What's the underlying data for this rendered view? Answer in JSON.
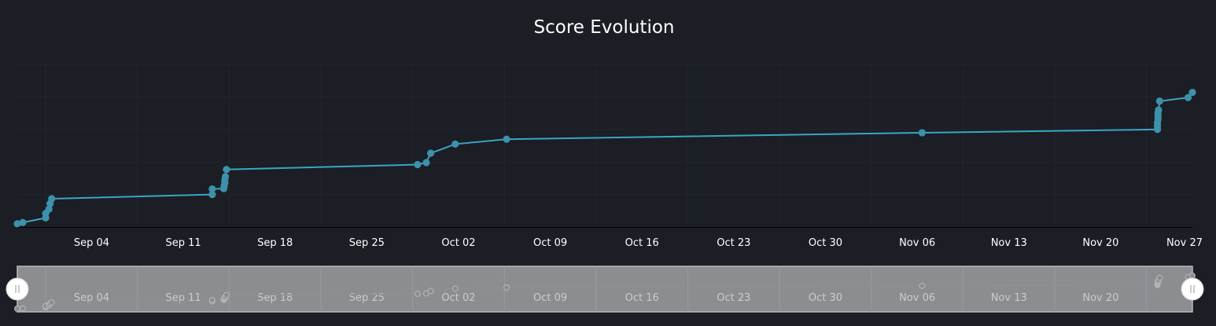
{
  "chart_data": {
    "type": "line",
    "title": "Score Evolution",
    "xlabel": "",
    "ylabel": "",
    "x_tick_labels": [
      "Sep 04",
      "Sep 11",
      "Sep 18",
      "Sep 25",
      "Oct 02",
      "Oct 09",
      "Oct 16",
      "Oct 23",
      "Oct 30",
      "Nov 06",
      "Nov 13",
      "Nov 20",
      "Nov 27"
    ],
    "x_ticks": [
      "2023-09-04",
      "2023-09-11",
      "2023-09-18",
      "2023-09-25",
      "2023-10-02",
      "2023-10-09",
      "2023-10-16",
      "2023-10-23",
      "2023-10-30",
      "2023-11-06",
      "2023-11-13",
      "2023-11-20",
      "2023-11-27"
    ],
    "xlim": [
      "2023-08-29T08:00",
      "2023-11-27"
    ],
    "ylim": [
      0,
      5
    ],
    "y_tick_labels_visible": false,
    "grid": true,
    "legend": "none",
    "series": [
      {
        "color": "#3aa5c4",
        "points": [
          [
            "2023-08-29T08:00",
            0.1
          ],
          [
            "2023-08-29T18:00",
            0.14
          ],
          [
            "2023-08-31T12:00",
            0.28
          ],
          [
            "2023-08-31T12:00",
            0.42
          ],
          [
            "2023-08-31T18:00",
            0.55
          ],
          [
            "2023-08-31T20:00",
            0.72
          ],
          [
            "2023-08-31T23:00",
            0.87
          ],
          [
            "2023-09-13T05:00",
            1.0
          ],
          [
            "2023-09-13T05:00",
            1.17
          ],
          [
            "2023-09-14T02:00",
            1.18
          ],
          [
            "2023-09-14T03:00",
            1.27
          ],
          [
            "2023-09-14T04:00",
            1.36
          ],
          [
            "2023-09-14T04:00",
            1.45
          ],
          [
            "2023-09-14T05:00",
            1.55
          ],
          [
            "2023-09-14T07:00",
            1.77
          ],
          [
            "2023-09-28T21:00",
            1.92
          ],
          [
            "2023-09-29T13:00",
            1.98
          ],
          [
            "2023-09-29T21:00",
            2.27
          ],
          [
            "2023-10-01T18:00",
            2.55
          ],
          [
            "2023-10-05T16:00",
            2.7
          ],
          [
            "2023-11-06T09:00",
            2.9
          ],
          [
            "2023-11-24T08:00",
            3.0
          ],
          [
            "2023-11-24T08:00",
            3.1
          ],
          [
            "2023-11-24T08:00",
            3.2
          ],
          [
            "2023-11-24T09:00",
            3.3
          ],
          [
            "2023-11-24T09:00",
            3.4
          ],
          [
            "2023-11-24T09:00",
            3.5
          ],
          [
            "2023-11-24T10:00",
            3.6
          ],
          [
            "2023-11-24T12:00",
            3.87
          ],
          [
            "2023-11-26T16:00",
            3.98
          ],
          [
            "2023-11-27T00:00",
            4.14
          ]
        ]
      }
    ],
    "navigator": {
      "range": [
        "2023-08-29T08:00",
        "2023-11-27"
      ],
      "x_tick_labels": [
        "Sep 04",
        "Sep 11",
        "Sep 18",
        "Sep 25",
        "Oct 02",
        "Oct 09",
        "Oct 16",
        "Oct 23",
        "Oct 30",
        "Nov 06",
        "Nov 13",
        "Nov 20"
      ],
      "colors": {
        "background": "#8c8d91",
        "line": "#8f9093",
        "handle": "#ffffff"
      }
    }
  }
}
